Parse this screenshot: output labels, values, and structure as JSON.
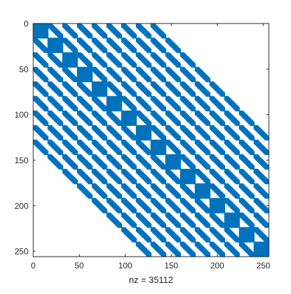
{
  "chart_data": {
    "type": "scatter",
    "subtype": "sparsity-pattern",
    "matrix_size": [
      256,
      256
    ],
    "nz": 35112,
    "xlabel": "nz = 35112",
    "xlim": [
      0,
      256
    ],
    "ylim": [
      0,
      256
    ],
    "y_axis_direction": "reversed",
    "xticks": [
      "0",
      "50",
      "100",
      "150",
      "200",
      "250"
    ],
    "yticks": [
      "0",
      "50",
      "100",
      "150",
      "200",
      "250"
    ],
    "block_size": 16,
    "block_bandwidth": 8,
    "marker_color": "#0072BD",
    "grid": false,
    "box": true
  }
}
